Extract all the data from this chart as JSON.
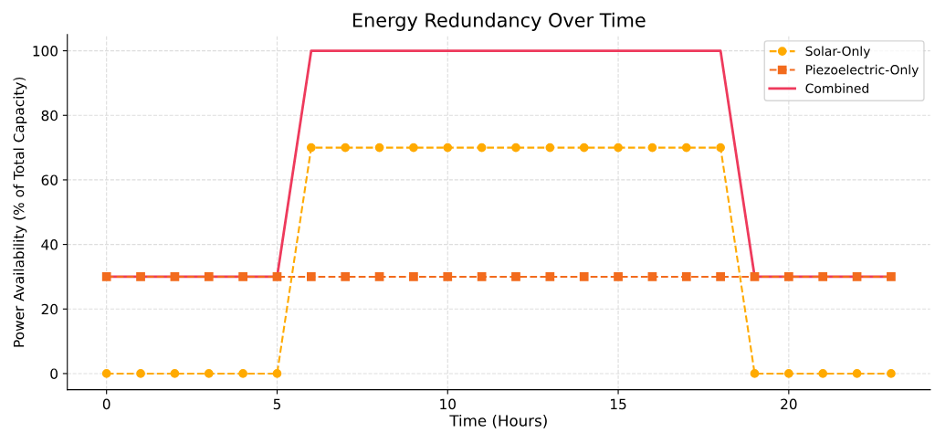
{
  "chart_data": {
    "type": "line",
    "title": "Energy Redundancy Over Time",
    "xlabel": "Time (Hours)",
    "ylabel": "Power Availability (% of Total Capacity)",
    "x": [
      0,
      1,
      2,
      3,
      4,
      5,
      6,
      7,
      8,
      9,
      10,
      11,
      12,
      13,
      14,
      15,
      16,
      17,
      18,
      19,
      20,
      21,
      22,
      23
    ],
    "series": [
      {
        "name": "Solar-Only",
        "color": "#ffaa00",
        "marker": "circle",
        "line_style": "dashed",
        "values": [
          0,
          0,
          0,
          0,
          0,
          0,
          70,
          70,
          70,
          70,
          70,
          70,
          70,
          70,
          70,
          70,
          70,
          70,
          70,
          0,
          0,
          0,
          0,
          0
        ]
      },
      {
        "name": "Piezoelectric-Only",
        "color": "#f26b1d",
        "marker": "square",
        "line_style": "dashed",
        "values": [
          30,
          30,
          30,
          30,
          30,
          30,
          30,
          30,
          30,
          30,
          30,
          30,
          30,
          30,
          30,
          30,
          30,
          30,
          30,
          30,
          30,
          30,
          30,
          30
        ]
      },
      {
        "name": "Combined",
        "color": "#ee3a5c",
        "marker": "none",
        "line_style": "solid",
        "values": [
          30,
          30,
          30,
          30,
          30,
          30,
          100,
          100,
          100,
          100,
          100,
          100,
          100,
          100,
          100,
          100,
          100,
          100,
          100,
          30,
          30,
          30,
          30,
          30
        ]
      }
    ],
    "xlim": [
      -1.15,
      24.15
    ],
    "ylim": [
      -5,
      105
    ],
    "xticks": [
      0,
      5,
      10,
      15,
      20
    ],
    "yticks": [
      0,
      20,
      40,
      60,
      80,
      100
    ],
    "grid": true,
    "legend": "top right"
  }
}
